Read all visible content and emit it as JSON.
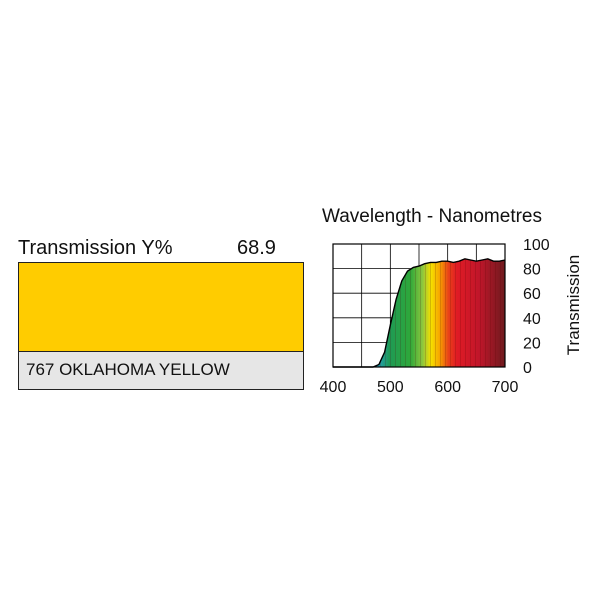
{
  "filter": {
    "transmission_label": "Transmission Y%",
    "transmission_value": "68.9",
    "name": "767 OKLAHOMA YELLOW",
    "swatch_color": "#FFCC00"
  },
  "chart_data": {
    "type": "area",
    "title": "Wavelength - Nanometres",
    "xlabel": "",
    "ylabel": "Transmission",
    "xlim": [
      400,
      700
    ],
    "ylim": [
      0,
      100
    ],
    "x_ticks": [
      "400",
      "500",
      "600",
      "700"
    ],
    "y_ticks": [
      "0",
      "20",
      "40",
      "60",
      "80",
      "100"
    ],
    "grid": true,
    "series": [
      {
        "x": [
          400,
          450,
          470,
          480,
          490,
          500,
          510,
          520,
          530,
          540,
          550,
          560,
          570,
          580,
          590,
          600,
          610,
          620,
          630,
          640,
          650,
          660,
          670,
          680,
          690,
          700
        ],
        "values": [
          0,
          0,
          0,
          2,
          12,
          34,
          55,
          70,
          78,
          81,
          82,
          84,
          85,
          85,
          86,
          86,
          85,
          86,
          88,
          87,
          86,
          87,
          88,
          86,
          86,
          87
        ]
      }
    ]
  }
}
